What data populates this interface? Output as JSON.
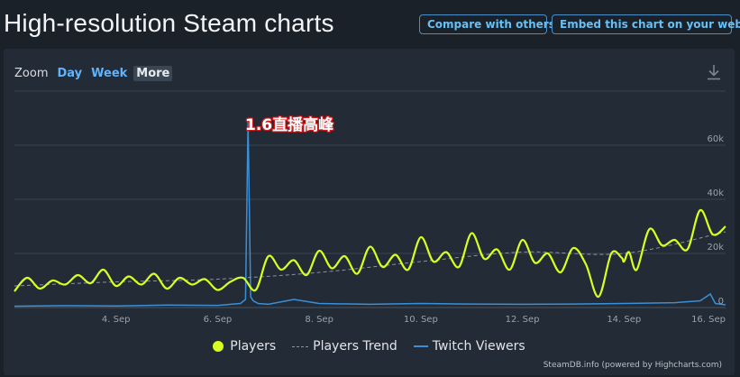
{
  "header": {
    "title": "High-resolution Steam charts",
    "compare_label": "Compare with others...",
    "embed_label": "Embed this chart on your website"
  },
  "zoom": {
    "label": "Zoom",
    "options": [
      "Day",
      "Week",
      "More"
    ],
    "active": "More"
  },
  "annotation": "1.6直播高峰",
  "credits": "SteamDB.info (powered by Highcharts.com)",
  "colors": {
    "players": "#d7ff1f",
    "trend": "#8c939c",
    "twitch": "#3b8fd6",
    "grid": "#3a4451"
  },
  "chart_data": {
    "type": "line",
    "x_start": "2 Sep",
    "x_end": "16 Sep",
    "x_ticks": [
      "4. Sep",
      "6. Sep",
      "8. Sep",
      "10. Sep",
      "12. Sep",
      "14. Sep",
      "16. Sep"
    ],
    "y_ticks": [
      "0",
      "20k",
      "40k",
      "60k"
    ],
    "ylim": [
      0,
      80000
    ],
    "grid": true,
    "legend_position": "bottom-center",
    "series": [
      {
        "name": "Players",
        "x_days": [
          2.0,
          2.25,
          2.5,
          2.75,
          3.0,
          3.25,
          3.5,
          3.75,
          4.0,
          4.25,
          4.5,
          4.75,
          5.0,
          5.25,
          5.5,
          5.75,
          6.0,
          6.25,
          6.5,
          6.75,
          7.0,
          7.25,
          7.5,
          7.75,
          8.0,
          8.25,
          8.5,
          8.75,
          9.0,
          9.25,
          9.5,
          9.75,
          10.0,
          10.25,
          10.5,
          10.75,
          11.0,
          11.25,
          11.5,
          11.75,
          12.0,
          12.25,
          12.5,
          12.75,
          13.0,
          13.25,
          13.5,
          13.75,
          13.95,
          14.0,
          14.1,
          14.25,
          14.5,
          14.75,
          15.0,
          15.25,
          15.5,
          15.75,
          16.0
        ],
        "values": [
          6000,
          11000,
          7000,
          10000,
          8500,
          12000,
          9000,
          14000,
          8000,
          11500,
          8500,
          12500,
          7000,
          11000,
          8500,
          10500,
          6500,
          9500,
          11000,
          6500,
          19000,
          14000,
          17500,
          12000,
          21000,
          14500,
          19000,
          12500,
          22500,
          15000,
          19500,
          14000,
          26000,
          17000,
          20500,
          15000,
          27500,
          18000,
          21500,
          14000,
          25000,
          16500,
          20000,
          13000,
          22000,
          16000,
          4000,
          20000,
          18500,
          17000,
          20500,
          14000,
          29000,
          23000,
          25000,
          21500,
          36000,
          27000,
          30000
        ]
      },
      {
        "name": "Players Trend",
        "x_days": [
          2.0,
          4.0,
          6.0,
          8.0,
          10.0,
          12.0,
          14.0,
          16.0
        ],
        "values": [
          8000,
          9500,
          10500,
          13000,
          17000,
          20500,
          20000,
          28000
        ]
      },
      {
        "name": "Twitch Viewers",
        "x_days": [
          2.0,
          3.0,
          4.0,
          5.0,
          6.0,
          6.45,
          6.55,
          6.6,
          6.65,
          6.7,
          6.8,
          7.0,
          7.5,
          8.0,
          9.0,
          10.0,
          11.0,
          12.0,
          13.0,
          14.0,
          15.0,
          15.5,
          15.7,
          15.8,
          16.0
        ],
        "values": [
          500,
          700,
          600,
          900,
          800,
          1500,
          3000,
          69000,
          4000,
          2500,
          1500,
          1200,
          3000,
          1500,
          1200,
          1500,
          1300,
          1200,
          1300,
          1500,
          1800,
          2500,
          5000,
          1500,
          1000
        ]
      }
    ]
  }
}
